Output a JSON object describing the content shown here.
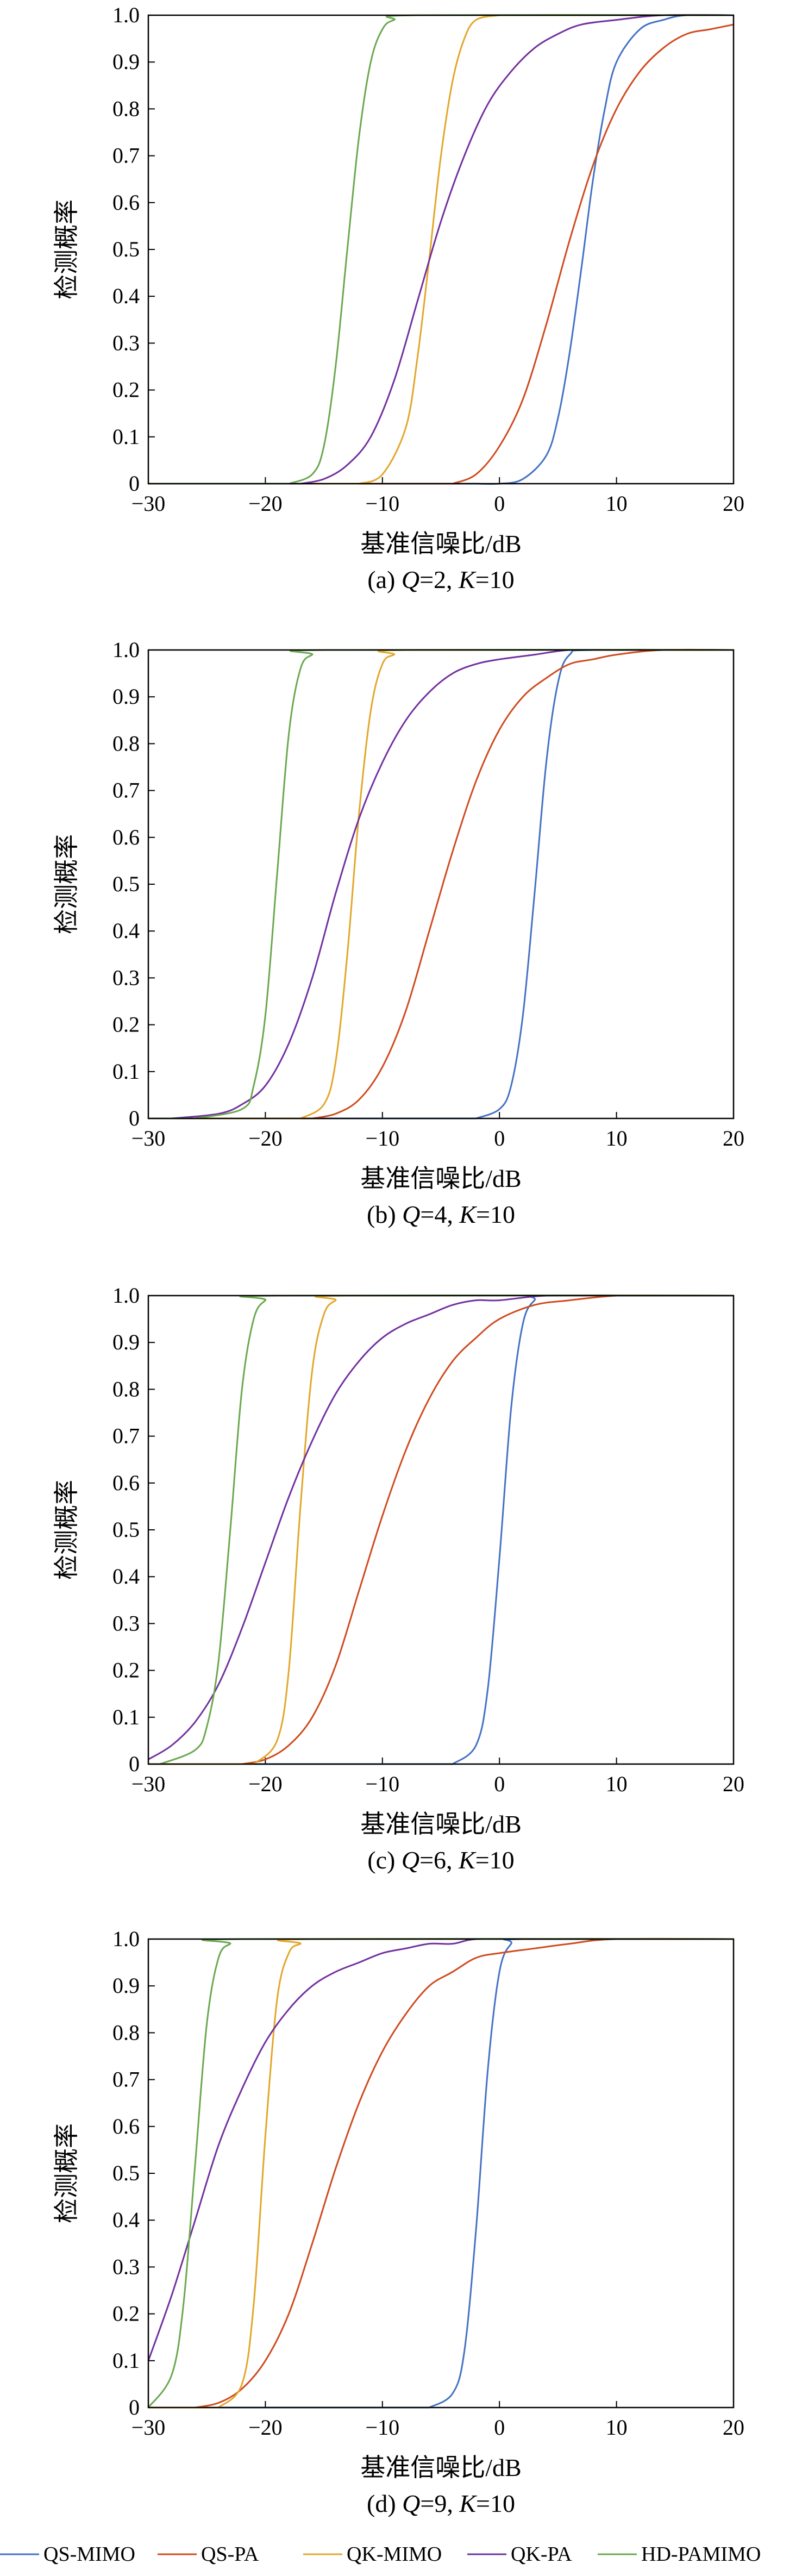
{
  "chart_data": [
    {
      "type": "line",
      "caption": {
        "prefix": "(a) ",
        "q_sym": "Q",
        "q_val": "=2, ",
        "k_sym": "K",
        "k_val": "=10"
      },
      "xlabel": "基准信噪比/dB",
      "ylabel": "检测概率",
      "xlim": [
        -30,
        20
      ],
      "ylim": [
        0,
        1
      ],
      "x_ticks": [
        -30,
        -20,
        -10,
        0,
        10,
        20
      ],
      "y_ticks": [
        0,
        0.1,
        0.2,
        0.3,
        0.4,
        0.5,
        0.6,
        0.7,
        0.8,
        0.9,
        1.0
      ],
      "y_tick_labels": [
        "0",
        "0.1",
        "0.2",
        "0.3",
        "0.4",
        "0.5",
        "0.6",
        "0.7",
        "0.8",
        "0.9",
        "1.0"
      ],
      "x_tick_labels": [
        "−30",
        "−20",
        "−10",
        "0",
        "10",
        "20"
      ],
      "series": [
        {
          "name": "QS-MIMO",
          "x": [
            -2,
            0,
            2,
            4,
            5,
            6,
            7,
            8,
            9,
            10,
            12,
            14,
            16,
            20
          ],
          "y": [
            0.0,
            0.0,
            0.01,
            0.06,
            0.14,
            0.28,
            0.46,
            0.65,
            0.8,
            0.9,
            0.97,
            0.99,
            1.0,
            1.0
          ]
        },
        {
          "name": "QS-PA",
          "x": [
            -4,
            -2,
            0,
            2,
            4,
            6,
            8,
            10,
            12,
            14,
            16,
            18,
            20
          ],
          "y": [
            0.0,
            0.02,
            0.08,
            0.18,
            0.34,
            0.52,
            0.68,
            0.8,
            0.88,
            0.93,
            0.96,
            0.97,
            0.98
          ]
        },
        {
          "name": "QK-MIMO",
          "x": [
            -12,
            -10,
            -8,
            -7,
            -6,
            -5,
            -4,
            -3,
            -2,
            0
          ],
          "y": [
            0.0,
            0.02,
            0.12,
            0.27,
            0.48,
            0.7,
            0.86,
            0.95,
            0.99,
            1.0
          ]
        },
        {
          "name": "QK-PA",
          "x": [
            -17,
            -15,
            -13,
            -11,
            -9,
            -7,
            -5,
            -3,
            -1,
            1,
            3,
            5,
            7,
            10,
            14,
            20
          ],
          "y": [
            0.0,
            0.01,
            0.04,
            0.1,
            0.22,
            0.39,
            0.56,
            0.7,
            0.81,
            0.88,
            0.93,
            0.96,
            0.98,
            0.99,
            1.0,
            1.0
          ]
        },
        {
          "name": "HD-PAMIMO",
          "x": [
            -18,
            -16,
            -15,
            -14,
            -13,
            -12,
            -11,
            -10,
            -9,
            -7,
            20
          ],
          "y": [
            0.0,
            0.02,
            0.08,
            0.25,
            0.5,
            0.74,
            0.9,
            0.97,
            0.99,
            1.0,
            1.0
          ]
        }
      ]
    },
    {
      "type": "line",
      "caption": {
        "prefix": "(b) ",
        "q_sym": "Q",
        "q_val": "=4, ",
        "k_sym": "K",
        "k_val": "=10"
      },
      "xlabel": "基准信噪比/dB",
      "ylabel": "检测概率",
      "xlim": [
        -30,
        20
      ],
      "ylim": [
        0,
        1
      ],
      "x_ticks": [
        -30,
        -20,
        -10,
        0,
        10,
        20
      ],
      "y_ticks": [
        0,
        0.1,
        0.2,
        0.3,
        0.4,
        0.5,
        0.6,
        0.7,
        0.8,
        0.9,
        1.0
      ],
      "y_tick_labels": [
        "0",
        "0.1",
        "0.2",
        "0.3",
        "0.4",
        "0.5",
        "0.6",
        "0.7",
        "0.8",
        "0.9",
        "1.0"
      ],
      "x_tick_labels": [
        "−30",
        "−20",
        "−10",
        "0",
        "10",
        "20"
      ],
      "series": [
        {
          "name": "QS-MIMO",
          "x": [
            -2,
            0,
            1,
            2,
            3,
            4,
            5,
            6,
            8,
            20
          ],
          "y": [
            0.0,
            0.02,
            0.07,
            0.22,
            0.48,
            0.76,
            0.93,
            0.99,
            1.0,
            1.0
          ]
        },
        {
          "name": "QS-PA",
          "x": [
            -16,
            -14,
            -12,
            -10,
            -8,
            -6,
            -4,
            -2,
            0,
            2,
            4,
            6,
            8,
            10,
            14,
            20
          ],
          "y": [
            0.0,
            0.01,
            0.04,
            0.11,
            0.23,
            0.4,
            0.57,
            0.72,
            0.83,
            0.9,
            0.94,
            0.97,
            0.98,
            0.99,
            1.0,
            1.0
          ]
        },
        {
          "name": "QK-MIMO",
          "x": [
            -17,
            -15,
            -14,
            -13,
            -12,
            -11,
            -10,
            -9,
            -8,
            20
          ],
          "y": [
            0.0,
            0.03,
            0.12,
            0.35,
            0.65,
            0.87,
            0.97,
            0.99,
            1.0,
            1.0
          ]
        },
        {
          "name": "QK-PA",
          "x": [
            -28,
            -24,
            -22,
            -20,
            -18,
            -16,
            -14,
            -12,
            -10,
            -8,
            -6,
            -4,
            -2,
            0,
            3,
            6,
            10,
            20
          ],
          "y": [
            0.0,
            0.01,
            0.03,
            0.07,
            0.16,
            0.3,
            0.48,
            0.64,
            0.76,
            0.85,
            0.91,
            0.95,
            0.97,
            0.98,
            0.99,
            1.0,
            1.0,
            1.0
          ]
        },
        {
          "name": "HD-PAMIMO",
          "x": [
            -26,
            -22,
            -21,
            -20,
            -19,
            -18,
            -17,
            -16,
            -15,
            20
          ],
          "y": [
            0.0,
            0.02,
            0.07,
            0.22,
            0.52,
            0.82,
            0.96,
            0.99,
            1.0,
            1.0
          ]
        }
      ]
    },
    {
      "type": "line",
      "caption": {
        "prefix": "(c) ",
        "q_sym": "Q",
        "q_val": "=6, ",
        "k_sym": "K",
        "k_val": "=10"
      },
      "xlabel": "基准信噪比/dB",
      "ylabel": "检测概率",
      "xlim": [
        -30,
        20
      ],
      "ylim": [
        0,
        1
      ],
      "x_ticks": [
        -30,
        -20,
        -10,
        0,
        10,
        20
      ],
      "y_ticks": [
        0,
        0.1,
        0.2,
        0.3,
        0.4,
        0.5,
        0.6,
        0.7,
        0.8,
        0.9,
        1.0
      ],
      "y_tick_labels": [
        "0",
        "0.1",
        "0.2",
        "0.3",
        "0.4",
        "0.5",
        "0.6",
        "0.7",
        "0.8",
        "0.9",
        "1.0"
      ],
      "x_tick_labels": [
        "−30",
        "−20",
        "−10",
        "0",
        "10",
        "20"
      ],
      "series": [
        {
          "name": "QS-MIMO",
          "x": [
            -4,
            -2,
            -1,
            0,
            1,
            2,
            3,
            4,
            20
          ],
          "y": [
            0.0,
            0.04,
            0.16,
            0.44,
            0.76,
            0.94,
            0.99,
            1.0,
            1.0
          ]
        },
        {
          "name": "QS-PA",
          "x": [
            -22,
            -20,
            -18,
            -16,
            -14,
            -12,
            -10,
            -8,
            -6,
            -4,
            -2,
            0,
            3,
            6,
            10,
            14,
            20
          ],
          "y": [
            0.0,
            0.01,
            0.04,
            0.1,
            0.21,
            0.37,
            0.53,
            0.67,
            0.78,
            0.86,
            0.91,
            0.95,
            0.98,
            0.99,
            1.0,
            1.0,
            1.0
          ]
        },
        {
          "name": "QK-MIMO",
          "x": [
            -21,
            -19,
            -18,
            -17,
            -16,
            -15,
            -14,
            -13,
            20
          ],
          "y": [
            0.0,
            0.05,
            0.2,
            0.55,
            0.84,
            0.96,
            0.99,
            1.0,
            1.0
          ]
        },
        {
          "name": "QK-PA",
          "x": [
            -30,
            -28,
            -26,
            -24,
            -22,
            -20,
            -18,
            -16,
            -14,
            -12,
            -10,
            -8,
            -6,
            -4,
            -2,
            0,
            4,
            10,
            20
          ],
          "y": [
            0.01,
            0.04,
            0.09,
            0.17,
            0.29,
            0.43,
            0.57,
            0.69,
            0.79,
            0.86,
            0.91,
            0.94,
            0.96,
            0.98,
            0.99,
            0.99,
            1.0,
            1.0,
            1.0
          ]
        },
        {
          "name": "HD-PAMIMO",
          "x": [
            -29,
            -26,
            -25,
            -24,
            -23,
            -22,
            -21,
            -20,
            -19,
            20
          ],
          "y": [
            0.0,
            0.03,
            0.08,
            0.22,
            0.5,
            0.8,
            0.95,
            0.99,
            1.0,
            1.0
          ]
        }
      ]
    },
    {
      "type": "line",
      "caption": {
        "prefix": "(d) ",
        "q_sym": "Q",
        "q_val": "=9, ",
        "k_sym": "K",
        "k_val": "=10"
      },
      "xlabel": "基准信噪比/dB",
      "ylabel": "检测概率",
      "xlim": [
        -30,
        20
      ],
      "ylim": [
        0,
        1
      ],
      "x_ticks": [
        -30,
        -20,
        -10,
        0,
        10,
        20
      ],
      "y_ticks": [
        0,
        0.1,
        0.2,
        0.3,
        0.4,
        0.5,
        0.6,
        0.7,
        0.8,
        0.9,
        1.0
      ],
      "y_tick_labels": [
        "0",
        "0.1",
        "0.2",
        "0.3",
        "0.4",
        "0.5",
        "0.6",
        "0.7",
        "0.8",
        "0.9",
        "1.0"
      ],
      "x_tick_labels": [
        "−30",
        "−20",
        "−10",
        "0",
        "10",
        "20"
      ],
      "series": [
        {
          "name": "QS-MIMO",
          "x": [
            -6,
            -4,
            -3,
            -2,
            -1,
            0,
            1,
            2,
            20
          ],
          "y": [
            0.0,
            0.03,
            0.12,
            0.38,
            0.72,
            0.93,
            0.99,
            1.0,
            1.0
          ]
        },
        {
          "name": "QS-PA",
          "x": [
            -26,
            -24,
            -22,
            -20,
            -18,
            -16,
            -14,
            -12,
            -10,
            -8,
            -6,
            -4,
            -2,
            0,
            3,
            6,
            10,
            20
          ],
          "y": [
            0.0,
            0.01,
            0.04,
            0.1,
            0.2,
            0.35,
            0.51,
            0.65,
            0.76,
            0.84,
            0.9,
            0.93,
            0.96,
            0.97,
            0.98,
            0.99,
            1.0,
            1.0
          ]
        },
        {
          "name": "QK-MIMO",
          "x": [
            -24,
            -22,
            -21,
            -20,
            -19,
            -18,
            -17,
            -16,
            20
          ],
          "y": [
            0.0,
            0.05,
            0.22,
            0.58,
            0.87,
            0.97,
            0.99,
            1.0,
            1.0
          ]
        },
        {
          "name": "QK-PA",
          "x": [
            -30,
            -28,
            -26,
            -24,
            -22,
            -20,
            -18,
            -16,
            -14,
            -12,
            -10,
            -8,
            -6,
            -4,
            -2,
            2,
            6,
            20
          ],
          "y": [
            0.1,
            0.24,
            0.4,
            0.56,
            0.68,
            0.78,
            0.85,
            0.9,
            0.93,
            0.95,
            0.97,
            0.98,
            0.99,
            0.99,
            1.0,
            1.0,
            1.0,
            1.0
          ]
        },
        {
          "name": "HD-PAMIMO",
          "x": [
            -30,
            -28,
            -27,
            -26,
            -25,
            -24,
            -23,
            -22,
            20
          ],
          "y": [
            0.0,
            0.07,
            0.22,
            0.52,
            0.82,
            0.96,
            0.99,
            1.0,
            1.0
          ]
        }
      ]
    }
  ],
  "legend": [
    {
      "name": "QS-MIMO",
      "color": "#4472c4"
    },
    {
      "name": "QS-PA",
      "color": "#d04a1e"
    },
    {
      "name": "QK-MIMO",
      "color": "#e2a72a"
    },
    {
      "name": "QK-PA",
      "color": "#7230a0"
    },
    {
      "name": "HD-PAMIMO",
      "color": "#6aa84f"
    }
  ]
}
